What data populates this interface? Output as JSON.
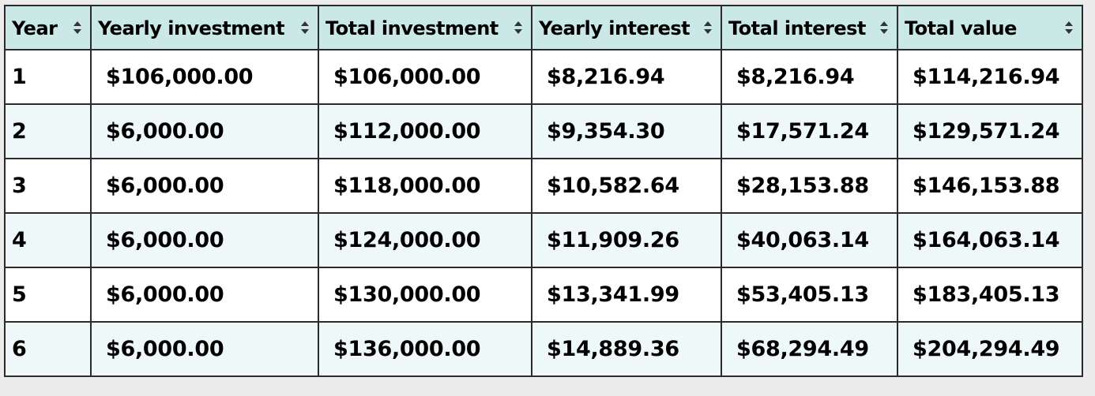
{
  "table": {
    "columns": [
      {
        "label": "Year"
      },
      {
        "label": "Yearly investment"
      },
      {
        "label": "Total investment"
      },
      {
        "label": "Yearly interest"
      },
      {
        "label": "Total interest"
      },
      {
        "label": "Total value"
      }
    ],
    "sort_icon": "sort-up-down-icon",
    "header_bg": "#c9e8e6",
    "row_alt_bg": "#eef8f8",
    "rows": [
      [
        "1",
        "$106,000.00",
        "$106,000.00",
        "$8,216.94",
        "$8,216.94",
        "$114,216.94"
      ],
      [
        "2",
        "$6,000.00",
        "$112,000.00",
        "$9,354.30",
        "$17,571.24",
        "$129,571.24"
      ],
      [
        "3",
        "$6,000.00",
        "$118,000.00",
        "$10,582.64",
        "$28,153.88",
        "$146,153.88"
      ],
      [
        "4",
        "$6,000.00",
        "$124,000.00",
        "$11,909.26",
        "$40,063.14",
        "$164,063.14"
      ],
      [
        "5",
        "$6,000.00",
        "$130,000.00",
        "$13,341.99",
        "$53,405.13",
        "$183,405.13"
      ],
      [
        "6",
        "$6,000.00",
        "$136,000.00",
        "$14,889.36",
        "$68,294.49",
        "$204,294.49"
      ]
    ]
  }
}
